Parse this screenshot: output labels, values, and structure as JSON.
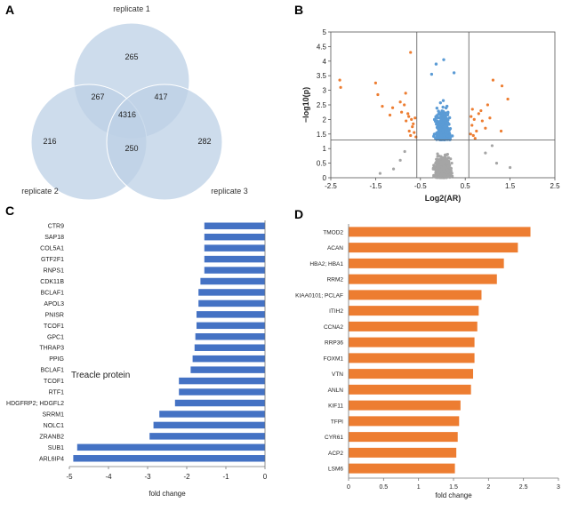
{
  "panels": {
    "a": "A",
    "b": "B",
    "c": "C",
    "d": "D"
  },
  "venn": {
    "sets": [
      "replicate 1",
      "replicate 2",
      "replicate 3"
    ],
    "regions": {
      "only1": "265",
      "only2": "216",
      "only3": "282",
      "r12": "267",
      "r13": "417",
      "r23": "250",
      "r123": "4316"
    },
    "colors": {
      "fill": "#bcd0e5",
      "stroke": "#ffffff"
    }
  },
  "chart_data": [
    {
      "panel": "B",
      "type": "scatter",
      "xlabel": "Log2(AR)",
      "ylabel": "−log10(p)",
      "xlim": [
        -2.5,
        2.5
      ],
      "ylim": [
        0,
        5
      ],
      "xticks": [
        "-2.5",
        "-1.5",
        "-0.5",
        "0.5",
        "1.5",
        "2.5"
      ],
      "yticks": [
        "0",
        "0.5",
        "1",
        "1.5",
        "2",
        "2.5",
        "3",
        "3.5",
        "4",
        "4.5",
        "5"
      ],
      "thresholds": {
        "x": [
          -0.58,
          0.58
        ],
        "y": 1.3
      },
      "colors": {
        "significant_fc": "#ed7d31",
        "significant": "#5b9bd5",
        "not_significant": "#a5a5a5"
      },
      "points_significant_fc": [
        [
          -2.3,
          3.35
        ],
        [
          -2.28,
          3.1
        ],
        [
          -1.5,
          3.25
        ],
        [
          -1.45,
          2.85
        ],
        [
          -1.35,
          2.45
        ],
        [
          -1.18,
          2.15
        ],
        [
          -1.12,
          2.4
        ],
        [
          -0.95,
          2.6
        ],
        [
          -0.92,
          2.25
        ],
        [
          -0.83,
          2.9
        ],
        [
          -0.82,
          1.95
        ],
        [
          -0.78,
          2.2
        ],
        [
          -0.75,
          1.6
        ],
        [
          -0.72,
          1.45
        ],
        [
          -0.7,
          2.0
        ],
        [
          -0.68,
          1.75
        ],
        [
          -0.66,
          1.85
        ],
        [
          -0.64,
          1.55
        ],
        [
          -0.62,
          2.05
        ],
        [
          -0.6,
          1.4
        ],
        [
          -0.72,
          4.3
        ],
        [
          -0.86,
          2.5
        ],
        [
          -0.76,
          2.1
        ],
        [
          0.62,
          1.5
        ],
        [
          0.63,
          2.1
        ],
        [
          0.65,
          1.8
        ],
        [
          0.68,
          1.45
        ],
        [
          0.7,
          2.0
        ],
        [
          0.75,
          1.6
        ],
        [
          0.8,
          2.2
        ],
        [
          0.85,
          2.3
        ],
        [
          0.88,
          1.95
        ],
        [
          0.95,
          1.7
        ],
        [
          1.0,
          2.5
        ],
        [
          1.05,
          2.05
        ],
        [
          1.12,
          3.35
        ],
        [
          1.3,
          1.6
        ],
        [
          1.32,
          3.15
        ],
        [
          1.45,
          2.7
        ],
        [
          0.72,
          1.35
        ],
        [
          0.66,
          2.35
        ]
      ],
      "points_not_sig_outliers": [
        [
          -0.85,
          0.9
        ],
        [
          -1.1,
          0.3
        ],
        [
          -0.95,
          0.6
        ],
        [
          0.95,
          0.85
        ],
        [
          1.2,
          0.5
        ],
        [
          1.5,
          0.35
        ],
        [
          -1.4,
          0.15
        ],
        [
          1.1,
          1.1
        ]
      ]
    },
    {
      "panel": "C",
      "type": "bar",
      "orientation": "horizontal",
      "xlabel": "fold change",
      "xlim": [
        -5,
        0
      ],
      "xticks": [
        "-5",
        "-4",
        "-3",
        "-2",
        "-1",
        "0"
      ],
      "bar_color": "#4472c4",
      "annotation": "Treacle protein",
      "categories": [
        "CTR9",
        "SAP18",
        "COL5A1",
        "GTF2F1",
        "RNPS1",
        "CDK11B",
        "BCLAF1",
        "APOL3",
        "PNISR",
        "TCOF1",
        "GPC1",
        "THRAP3",
        "PPIG",
        "BCLAF1",
        "TCOF1",
        "RTF1",
        "HDGFRP2; HDGFL2",
        "SRRM1",
        "NOLC1",
        "ZRANB2",
        "SUB1",
        "ARL6IP4"
      ],
      "values": [
        -1.55,
        -1.55,
        -1.55,
        -1.55,
        -1.55,
        -1.65,
        -1.7,
        -1.7,
        -1.75,
        -1.75,
        -1.78,
        -1.8,
        -1.85,
        -1.9,
        -2.2,
        -2.2,
        -2.3,
        -2.7,
        -2.85,
        -2.95,
        -4.8,
        -4.9
      ]
    },
    {
      "panel": "D",
      "type": "bar",
      "orientation": "horizontal",
      "xlabel": "fold change",
      "xlim": [
        0,
        3
      ],
      "xticks": [
        "0",
        "0.5",
        "1",
        "1.5",
        "2",
        "2.5",
        "3"
      ],
      "bar_color": "#ed7d31",
      "categories": [
        "TMOD2",
        "ACAN",
        "HBA2; HBA1",
        "RRM2",
        "KIAA0101; PCLAF",
        "ITIH2",
        "CCNA2",
        "RRP36",
        "FOXM1",
        "VTN",
        "ANLN",
        "KIF11",
        "TFPI",
        "CYR61",
        "ACP2",
        "LSM6"
      ],
      "values": [
        2.6,
        2.42,
        2.22,
        2.12,
        1.9,
        1.86,
        1.84,
        1.8,
        1.8,
        1.78,
        1.75,
        1.6,
        1.58,
        1.56,
        1.54,
        1.52
      ]
    }
  ]
}
